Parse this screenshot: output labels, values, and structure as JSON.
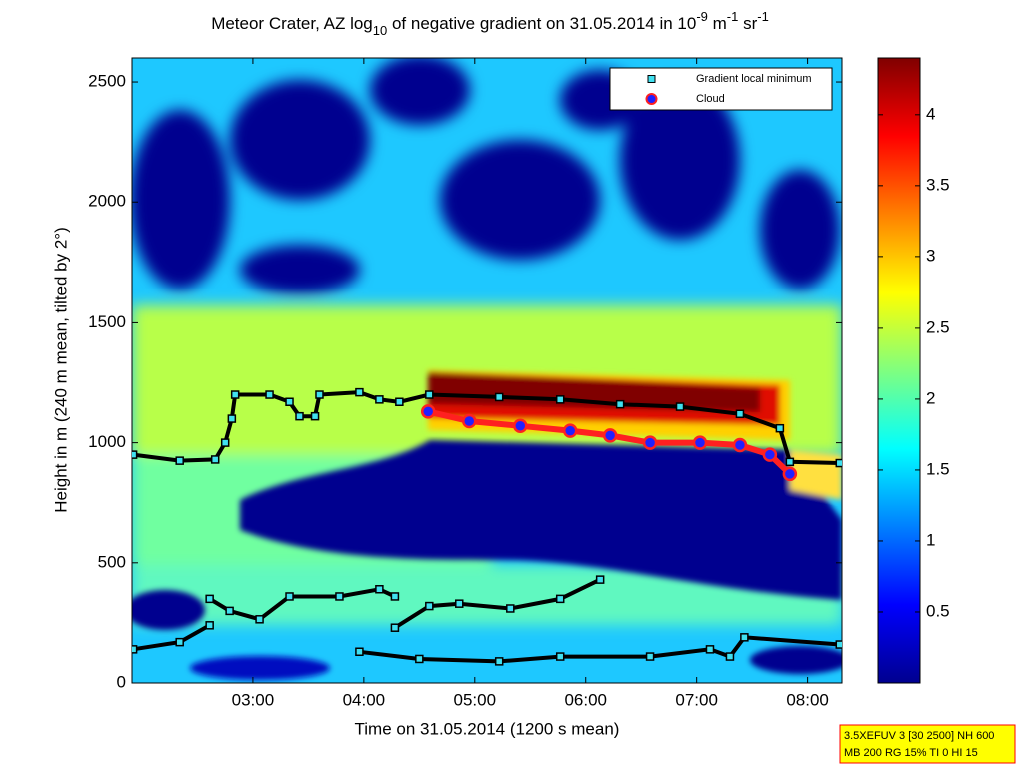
{
  "chart_data": {
    "type": "heatmap-with-markers",
    "title": [
      "Meteor Crater, AZ log",
      "10",
      " of negative gradient on 31.05.2014 in 10",
      "-9",
      " m",
      "-1",
      " sr",
      "-1"
    ],
    "xlabel": "Time on 31.05.2014 (1200 s mean)",
    "ylabel": "Height in m (240 m mean, tilted by 2°)",
    "xlim": [
      1.91,
      8.31
    ],
    "xticks": [
      {
        "value": 3,
        "label": "03:00"
      },
      {
        "value": 4,
        "label": "04:00"
      },
      {
        "value": 5,
        "label": "05:00"
      },
      {
        "value": 6,
        "label": "06:00"
      },
      {
        "value": 7,
        "label": "07:00"
      },
      {
        "value": 8,
        "label": "08:00"
      }
    ],
    "ylim": [
      0,
      2600
    ],
    "yticks": [
      0,
      500,
      1000,
      1500,
      2000,
      2500
    ],
    "colorbar": {
      "clim": [
        0,
        4.4
      ],
      "ticks": [
        0.5,
        1,
        1.5,
        2,
        2.5,
        3,
        3.5,
        4
      ],
      "colormap": "jet"
    },
    "legend": "upper right",
    "series": [
      {
        "name": "Gradient local minimum",
        "color": "#40e0f0",
        "edge": "#000000",
        "x": [
          1.92,
          2.34,
          2.66,
          2.75,
          2.81,
          2.84,
          3.15,
          3.33,
          3.42,
          3.56,
          3.6,
          3.96,
          4.14,
          4.32,
          4.59,
          5.22,
          5.77,
          6.31,
          6.85,
          7.39,
          7.75,
          7.84,
          8.29,
          null,
          2.61,
          2.79,
          3.06,
          3.33,
          3.78,
          4.14,
          4.28,
          null,
          4.28,
          4.59,
          4.86,
          5.32,
          5.77,
          6.13,
          null,
          1.92,
          2.34,
          2.61,
          null,
          3.96,
          4.5,
          5.22,
          5.77,
          6.58,
          7.12,
          7.3,
          7.43,
          8.29
        ],
        "values": [
          950,
          925,
          930,
          1000,
          1100,
          1200,
          1200,
          1170,
          1110,
          1110,
          1200,
          1210,
          1180,
          1170,
          1200,
          1190,
          1180,
          1160,
          1150,
          1120,
          1060,
          920,
          915,
          null,
          350,
          300,
          265,
          360,
          360,
          390,
          360,
          null,
          230,
          320,
          330,
          310,
          350,
          430,
          null,
          140,
          170,
          240,
          null,
          130,
          100,
          90,
          110,
          110,
          140,
          110,
          190,
          160
        ]
      },
      {
        "name": "Cloud",
        "color": "#2020ff",
        "edge": "#ff2020",
        "x": [
          4.58,
          4.95,
          5.41,
          5.86,
          6.22,
          6.58,
          7.03,
          7.39,
          7.66,
          7.84
        ],
        "values": [
          1130,
          1090,
          1070,
          1050,
          1030,
          1000,
          1000,
          990,
          950,
          870
        ]
      }
    ],
    "info": [
      "3.5XEFUV 3 [30 2500] NH 600",
      "MB 200 RG 15% TI 0 HI 15"
    ]
  }
}
